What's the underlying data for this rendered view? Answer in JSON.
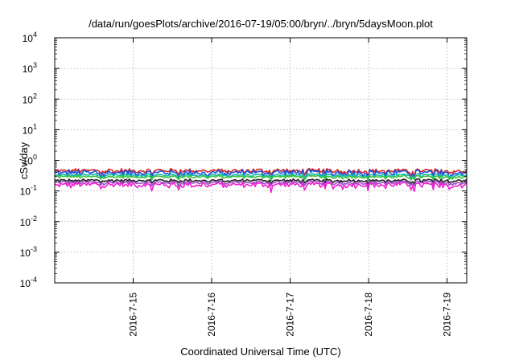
{
  "chart_data": {
    "type": "line",
    "title": "/data/run/goesPlots/archive/2016-07-19/05:00/bryn/../bryn/5daysMoon.plot",
    "xlabel": "Coordinated Universal Time (UTC)",
    "ylabel": "cSv/day",
    "y_scale": "log",
    "ylim_exponents": [
      -4,
      4
    ],
    "y_tick_base": "10",
    "y_ticks": [
      {
        "base": "10",
        "exp": "-4"
      },
      {
        "base": "10",
        "exp": "-3"
      },
      {
        "base": "10",
        "exp": "-2"
      },
      {
        "base": "10",
        "exp": "-1"
      },
      {
        "base": "10",
        "exp": "0"
      },
      {
        "base": "10",
        "exp": "1"
      },
      {
        "base": "10",
        "exp": "2"
      },
      {
        "base": "10",
        "exp": "3"
      },
      {
        "base": "10",
        "exp": "4"
      }
    ],
    "xlim": [
      "2016-07-14",
      "2016-07-19 06:00"
    ],
    "x_ticks": [
      "2016-7-15",
      "2016-7-16",
      "2016-7-17",
      "2016-7-18",
      "2016-7-19"
    ],
    "grid": true,
    "series": [
      {
        "color": "#d62728",
        "level": 0.46,
        "amplitude": 0.09
      },
      {
        "color": "#1f4fd8",
        "level": 0.4,
        "amplitude": 0.11
      },
      {
        "color": "#18b8b0",
        "level": 0.33,
        "amplitude": 0.05
      },
      {
        "color": "#38c43a",
        "level": 0.29,
        "amplitude": 0.04
      },
      {
        "color": "#222222",
        "level": 0.22,
        "amplitude": 0.03
      },
      {
        "color": "#9a4fc4",
        "level": 0.19,
        "amplitude": 0.03
      },
      {
        "color": "#ee1fd0",
        "level": 0.16,
        "amplitude": 0.04
      }
    ]
  }
}
